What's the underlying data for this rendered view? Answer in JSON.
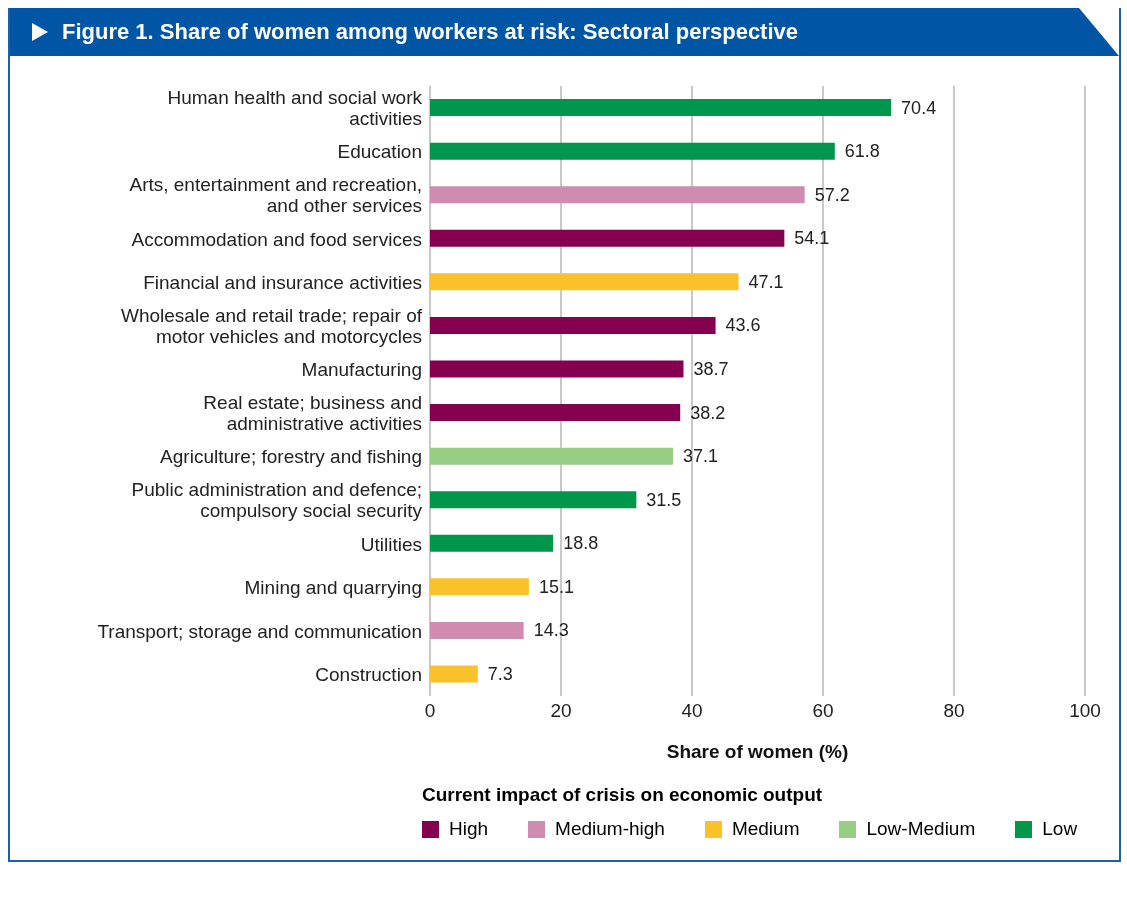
{
  "chart_data": {
    "type": "bar",
    "orientation": "horizontal",
    "stacked": true,
    "title": "Figure 1. Share of women among workers at risk: Sectoral perspective",
    "xlabel": "Share of women (%)",
    "legend_title": "Current impact of crisis on economic output",
    "legend": "bottom",
    "grid": "x",
    "data_labels": true,
    "categories": [
      "Human health and social work activities",
      "Education",
      "Arts, entertainment and recreation, and other services",
      "Accommodation and food services",
      "Financial and insurance activities",
      "Wholesale and retail trade; repair of motor vehicles and motorcycles",
      "Manufacturing",
      "Real estate; business and administrative activities",
      "Agriculture; forestry and fishing",
      "Public administration and defence; compulsory social security",
      "Utilities",
      "Mining and quarrying",
      "Transport; storage and communication",
      "Construction"
    ],
    "xlim": [
      0,
      100
    ],
    "xticks": [
      0,
      20,
      40,
      60,
      80,
      100
    ],
    "series": [
      {
        "name": "High",
        "color": "#85004f",
        "values": [
          null,
          null,
          null,
          54.1,
          null,
          43.6,
          38.7,
          38.2,
          null,
          null,
          null,
          null,
          null,
          null
        ]
      },
      {
        "name": "Medium-high",
        "color": "#d08bb0",
        "values": [
          null,
          null,
          57.2,
          null,
          null,
          null,
          null,
          null,
          null,
          null,
          null,
          null,
          14.3,
          null
        ]
      },
      {
        "name": "Medium",
        "color": "#f9c12a",
        "values": [
          null,
          null,
          null,
          null,
          47.1,
          null,
          null,
          null,
          null,
          null,
          null,
          15.1,
          null,
          7.3
        ]
      },
      {
        "name": "Low-Medium",
        "color": "#98cd84",
        "values": [
          null,
          null,
          null,
          null,
          null,
          null,
          null,
          null,
          37.1,
          null,
          null,
          null,
          null,
          null
        ]
      },
      {
        "name": "Low",
        "color": "#00964b",
        "values": [
          70.4,
          61.8,
          null,
          null,
          null,
          null,
          null,
          null,
          null,
          31.5,
          18.8,
          null,
          null,
          null
        ]
      }
    ]
  }
}
